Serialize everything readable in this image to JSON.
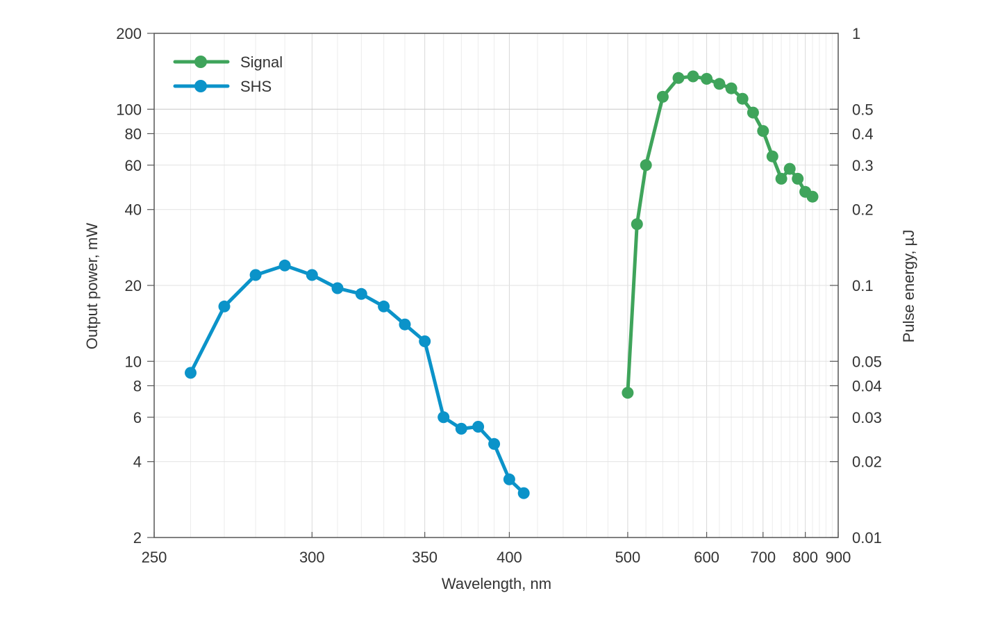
{
  "chart_data": {
    "type": "line",
    "xlabel": "Wavelength, nm",
    "ylabel": "Output power, mW",
    "y2label": "Pulse energy, µJ",
    "x_scale": "reciprocal",
    "y_scale": "log",
    "xlim": [
      250,
      900
    ],
    "ylim": [
      2,
      200
    ],
    "y2lim": [
      0.01,
      1
    ],
    "x_ticks": [
      "250",
      "300",
      "350",
      "400",
      "500",
      "600",
      "700",
      "800",
      "900"
    ],
    "y_ticks": [
      "2",
      "4",
      "6",
      "8",
      "10",
      "20",
      "40",
      "60",
      "80",
      "100",
      "200"
    ],
    "y2_ticks": [
      "0.01",
      "0.02",
      "0.03",
      "0.04",
      "0.05",
      "0.1",
      "0.2",
      "0.3",
      "0.4",
      "0.5",
      "1"
    ],
    "grid": true,
    "legend_position": "top-left",
    "series": [
      {
        "name": "Signal",
        "color": "#3fa45b",
        "x": [
          500,
          510,
          520,
          540,
          560,
          580,
          600,
          620,
          640,
          660,
          680,
          700,
          720,
          740,
          760,
          780,
          800,
          820
        ],
        "y": [
          7.5,
          35,
          60,
          112,
          133,
          135,
          132,
          126,
          121,
          110,
          97,
          82,
          65,
          53,
          58,
          53,
          47,
          45
        ]
      },
      {
        "name": "SHS",
        "color": "#0b93c9",
        "x": [
          260,
          270,
          280,
          290,
          300,
          310,
          320,
          330,
          340,
          350,
          360,
          370,
          380,
          390,
          400,
          410
        ],
        "y": [
          9,
          16.5,
          22,
          24,
          22,
          19.5,
          18.5,
          16.5,
          14,
          12,
          6,
          5.4,
          5.5,
          4.7,
          3.4,
          3
        ]
      }
    ]
  }
}
